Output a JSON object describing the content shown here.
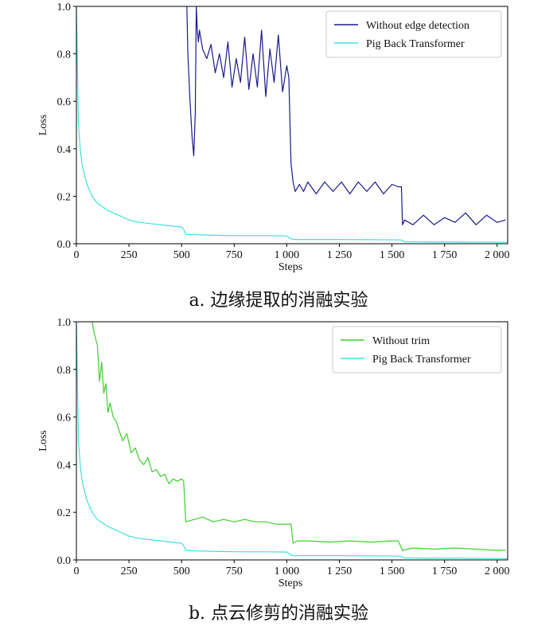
{
  "chart_data": [
    {
      "type": "line",
      "caption": "a. 边缘提取的消融实验",
      "xlabel": "Steps",
      "ylabel": "Loss",
      "xlim": [
        0,
        2050
      ],
      "ylim": [
        0,
        1.0
      ],
      "x_ticks": [
        0,
        250,
        500,
        750,
        1000,
        1250,
        1500,
        1750,
        2000
      ],
      "x_tick_labels": [
        "0",
        "250",
        "500",
        "750",
        "1 000",
        "1 250",
        "1 500",
        "1 750",
        "2 000"
      ],
      "y_ticks": [
        0.0,
        0.2,
        0.4,
        0.6,
        0.8,
        1.0
      ],
      "y_tick_labels": [
        "0.0",
        "0.2",
        "0.4",
        "0.6",
        "0.8",
        "1.0"
      ],
      "legend_position": "top-right",
      "series": [
        {
          "name": "Without edge detection",
          "color": "#1a1a8c",
          "x": [
            525,
            530,
            540,
            550,
            558,
            565,
            570,
            575,
            580,
            585,
            600,
            620,
            640,
            660,
            680,
            700,
            720,
            740,
            760,
            780,
            800,
            820,
            840,
            860,
            880,
            900,
            920,
            940,
            960,
            980,
            1000,
            1010,
            1020,
            1030,
            1040,
            1060,
            1080,
            1100,
            1140,
            1180,
            1220,
            1260,
            1300,
            1340,
            1380,
            1420,
            1460,
            1500,
            1530,
            1545,
            1550,
            1560,
            1600,
            1650,
            1700,
            1750,
            1800,
            1850,
            1900,
            1950,
            2000,
            2040
          ],
          "y": [
            1.0,
            0.8,
            0.6,
            0.45,
            0.37,
            0.55,
            1.0,
            0.9,
            0.85,
            0.9,
            0.82,
            0.78,
            0.84,
            0.72,
            0.8,
            0.7,
            0.85,
            0.66,
            0.78,
            0.68,
            0.87,
            0.65,
            0.8,
            0.66,
            0.9,
            0.62,
            0.82,
            0.68,
            0.88,
            0.64,
            0.75,
            0.7,
            0.34,
            0.26,
            0.22,
            0.25,
            0.22,
            0.26,
            0.21,
            0.26,
            0.22,
            0.26,
            0.21,
            0.26,
            0.22,
            0.26,
            0.21,
            0.25,
            0.24,
            0.24,
            0.08,
            0.1,
            0.08,
            0.12,
            0.08,
            0.11,
            0.09,
            0.13,
            0.08,
            0.12,
            0.09,
            0.1
          ]
        },
        {
          "name": "Pig Back Transformer",
          "color": "#40e0e0",
          "x": [
            0,
            5,
            10,
            20,
            30,
            50,
            75,
            100,
            150,
            200,
            250,
            300,
            350,
            400,
            450,
            500,
            510,
            520,
            560,
            600,
            700,
            800,
            900,
            1000,
            1020,
            1040,
            1200,
            1400,
            1540,
            1560,
            1800,
            2050
          ],
          "y": [
            1.0,
            0.75,
            0.5,
            0.38,
            0.32,
            0.25,
            0.2,
            0.17,
            0.14,
            0.12,
            0.1,
            0.09,
            0.085,
            0.08,
            0.075,
            0.07,
            0.06,
            0.04,
            0.038,
            0.037,
            0.035,
            0.034,
            0.034,
            0.033,
            0.02,
            0.018,
            0.018,
            0.017,
            0.016,
            0.008,
            0.007,
            0.006
          ]
        }
      ]
    },
    {
      "type": "line",
      "caption": "b. 点云修剪的消融实验",
      "xlabel": "Steps",
      "ylabel": "Loss",
      "xlim": [
        0,
        2050
      ],
      "ylim": [
        0,
        1.0
      ],
      "x_ticks": [
        0,
        250,
        500,
        750,
        1000,
        1250,
        1500,
        1750,
        2000
      ],
      "x_tick_labels": [
        "0",
        "250",
        "500",
        "750",
        "1 000",
        "1 250",
        "1 500",
        "1 750",
        "2 000"
      ],
      "y_ticks": [
        0.0,
        0.2,
        0.4,
        0.6,
        0.8,
        1.0
      ],
      "y_tick_labels": [
        "0.0",
        "0.2",
        "0.4",
        "0.6",
        "0.8",
        "1.0"
      ],
      "legend_position": "top-right",
      "series": [
        {
          "name": "Without trim",
          "color": "#3ecf2e",
          "x": [
            75,
            85,
            100,
            110,
            120,
            130,
            140,
            150,
            160,
            175,
            190,
            200,
            220,
            240,
            260,
            280,
            300,
            320,
            340,
            360,
            380,
            400,
            420,
            440,
            460,
            480,
            500,
            510,
            520,
            560,
            600,
            650,
            700,
            750,
            800,
            850,
            900,
            950,
            1000,
            1020,
            1030,
            1050,
            1100,
            1200,
            1300,
            1400,
            1500,
            1530,
            1550,
            1600,
            1700,
            1800,
            1900,
            2000,
            2040
          ],
          "y": [
            1.0,
            0.95,
            0.9,
            0.75,
            0.83,
            0.7,
            0.74,
            0.62,
            0.66,
            0.6,
            0.58,
            0.55,
            0.5,
            0.53,
            0.45,
            0.47,
            0.42,
            0.4,
            0.43,
            0.37,
            0.38,
            0.35,
            0.36,
            0.32,
            0.34,
            0.33,
            0.34,
            0.33,
            0.16,
            0.17,
            0.18,
            0.16,
            0.17,
            0.16,
            0.17,
            0.16,
            0.16,
            0.15,
            0.15,
            0.15,
            0.07,
            0.08,
            0.08,
            0.075,
            0.08,
            0.075,
            0.08,
            0.08,
            0.04,
            0.05,
            0.045,
            0.05,
            0.045,
            0.04,
            0.04
          ]
        },
        {
          "name": "Pig Back Transformer",
          "color": "#40e0e0",
          "x": [
            0,
            5,
            10,
            20,
            30,
            50,
            75,
            100,
            150,
            200,
            250,
            300,
            350,
            400,
            450,
            500,
            510,
            520,
            560,
            600,
            700,
            800,
            900,
            1000,
            1020,
            1040,
            1200,
            1400,
            1540,
            1560,
            1800,
            2050
          ],
          "y": [
            1.0,
            0.75,
            0.5,
            0.38,
            0.32,
            0.25,
            0.2,
            0.17,
            0.14,
            0.12,
            0.1,
            0.09,
            0.085,
            0.08,
            0.075,
            0.07,
            0.06,
            0.04,
            0.038,
            0.037,
            0.035,
            0.034,
            0.034,
            0.033,
            0.02,
            0.018,
            0.018,
            0.017,
            0.016,
            0.008,
            0.007,
            0.006
          ]
        }
      ]
    }
  ]
}
